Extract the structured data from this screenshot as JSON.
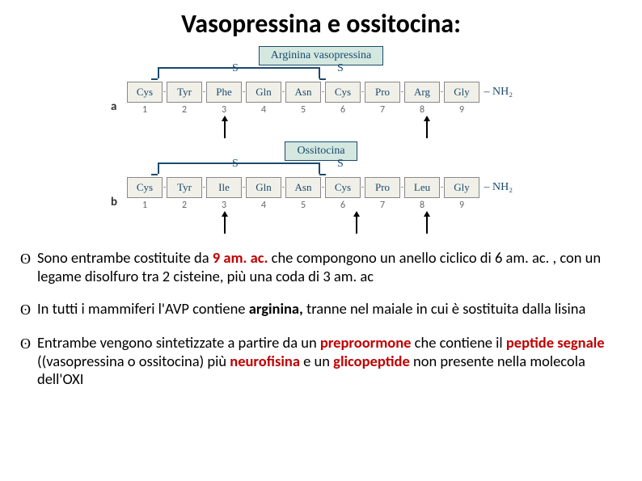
{
  "title": "Vasopressina e ossitocina:",
  "diagram": {
    "panelA": {
      "sideLabel": "a",
      "boxTitle": "Arginina vasopressina",
      "sLabel": "S",
      "amino": [
        "Cys",
        "Tyr",
        "Phe",
        "Gln",
        "Asn",
        "Cys",
        "Pro",
        "Arg",
        "Gly"
      ],
      "tail": "NH₂",
      "numbers": [
        "1",
        "2",
        "3",
        "4",
        "5",
        "6",
        "7",
        "8",
        "9"
      ]
    },
    "arrowsA": {
      "positions": [
        120,
        370
      ]
    },
    "panelB": {
      "sideLabel": "b",
      "boxTitle": "Ossitocina",
      "sLabel": "S",
      "amino": [
        "Cys",
        "Tyr",
        "Ile",
        "Gln",
        "Asn",
        "Cys",
        "Pro",
        "Leu",
        "Gly"
      ],
      "tail": "NH₂",
      "numbers": [
        "1",
        "2",
        "3",
        "4",
        "5",
        "6",
        "7",
        "8",
        "9"
      ]
    },
    "arrowsB": {
      "positions": [
        120,
        283,
        370
      ]
    }
  },
  "bullets": [
    {
      "parts": [
        {
          "t": "Sono entrambe costituite da "
        },
        {
          "t": "9 am. ac. ",
          "b": true,
          "red": true
        },
        {
          "t": "che compongono un anello ciclico di 6 am. ac. , con un legame disolfuro tra 2 cisteine, più una coda di 3 am. ac"
        }
      ]
    },
    {
      "parts": [
        {
          "t": "In tutti i mammiferi l'AVP contiene "
        },
        {
          "t": "arginina, ",
          "b": true
        },
        {
          "t": "tranne nel maiale in cui è sostituita dalla lisina"
        }
      ]
    },
    {
      "parts": [
        {
          "t": "Entrambe vengono sintetizzate a partire da un "
        },
        {
          "t": "preproormone ",
          "b": true,
          "red": true
        },
        {
          "t": "che contiene il "
        },
        {
          "t": "peptide segnale ",
          "b": true,
          "red": true
        },
        {
          "t": "((vasopressina o ossitocina) più "
        },
        {
          "t": "neurofisina ",
          "b": true,
          "red": true
        },
        {
          "t": "e un "
        },
        {
          "t": "glicopeptide ",
          "b": true,
          "red": true
        },
        {
          "t": "non presente nella molecola dell'OXI"
        }
      ]
    }
  ]
}
